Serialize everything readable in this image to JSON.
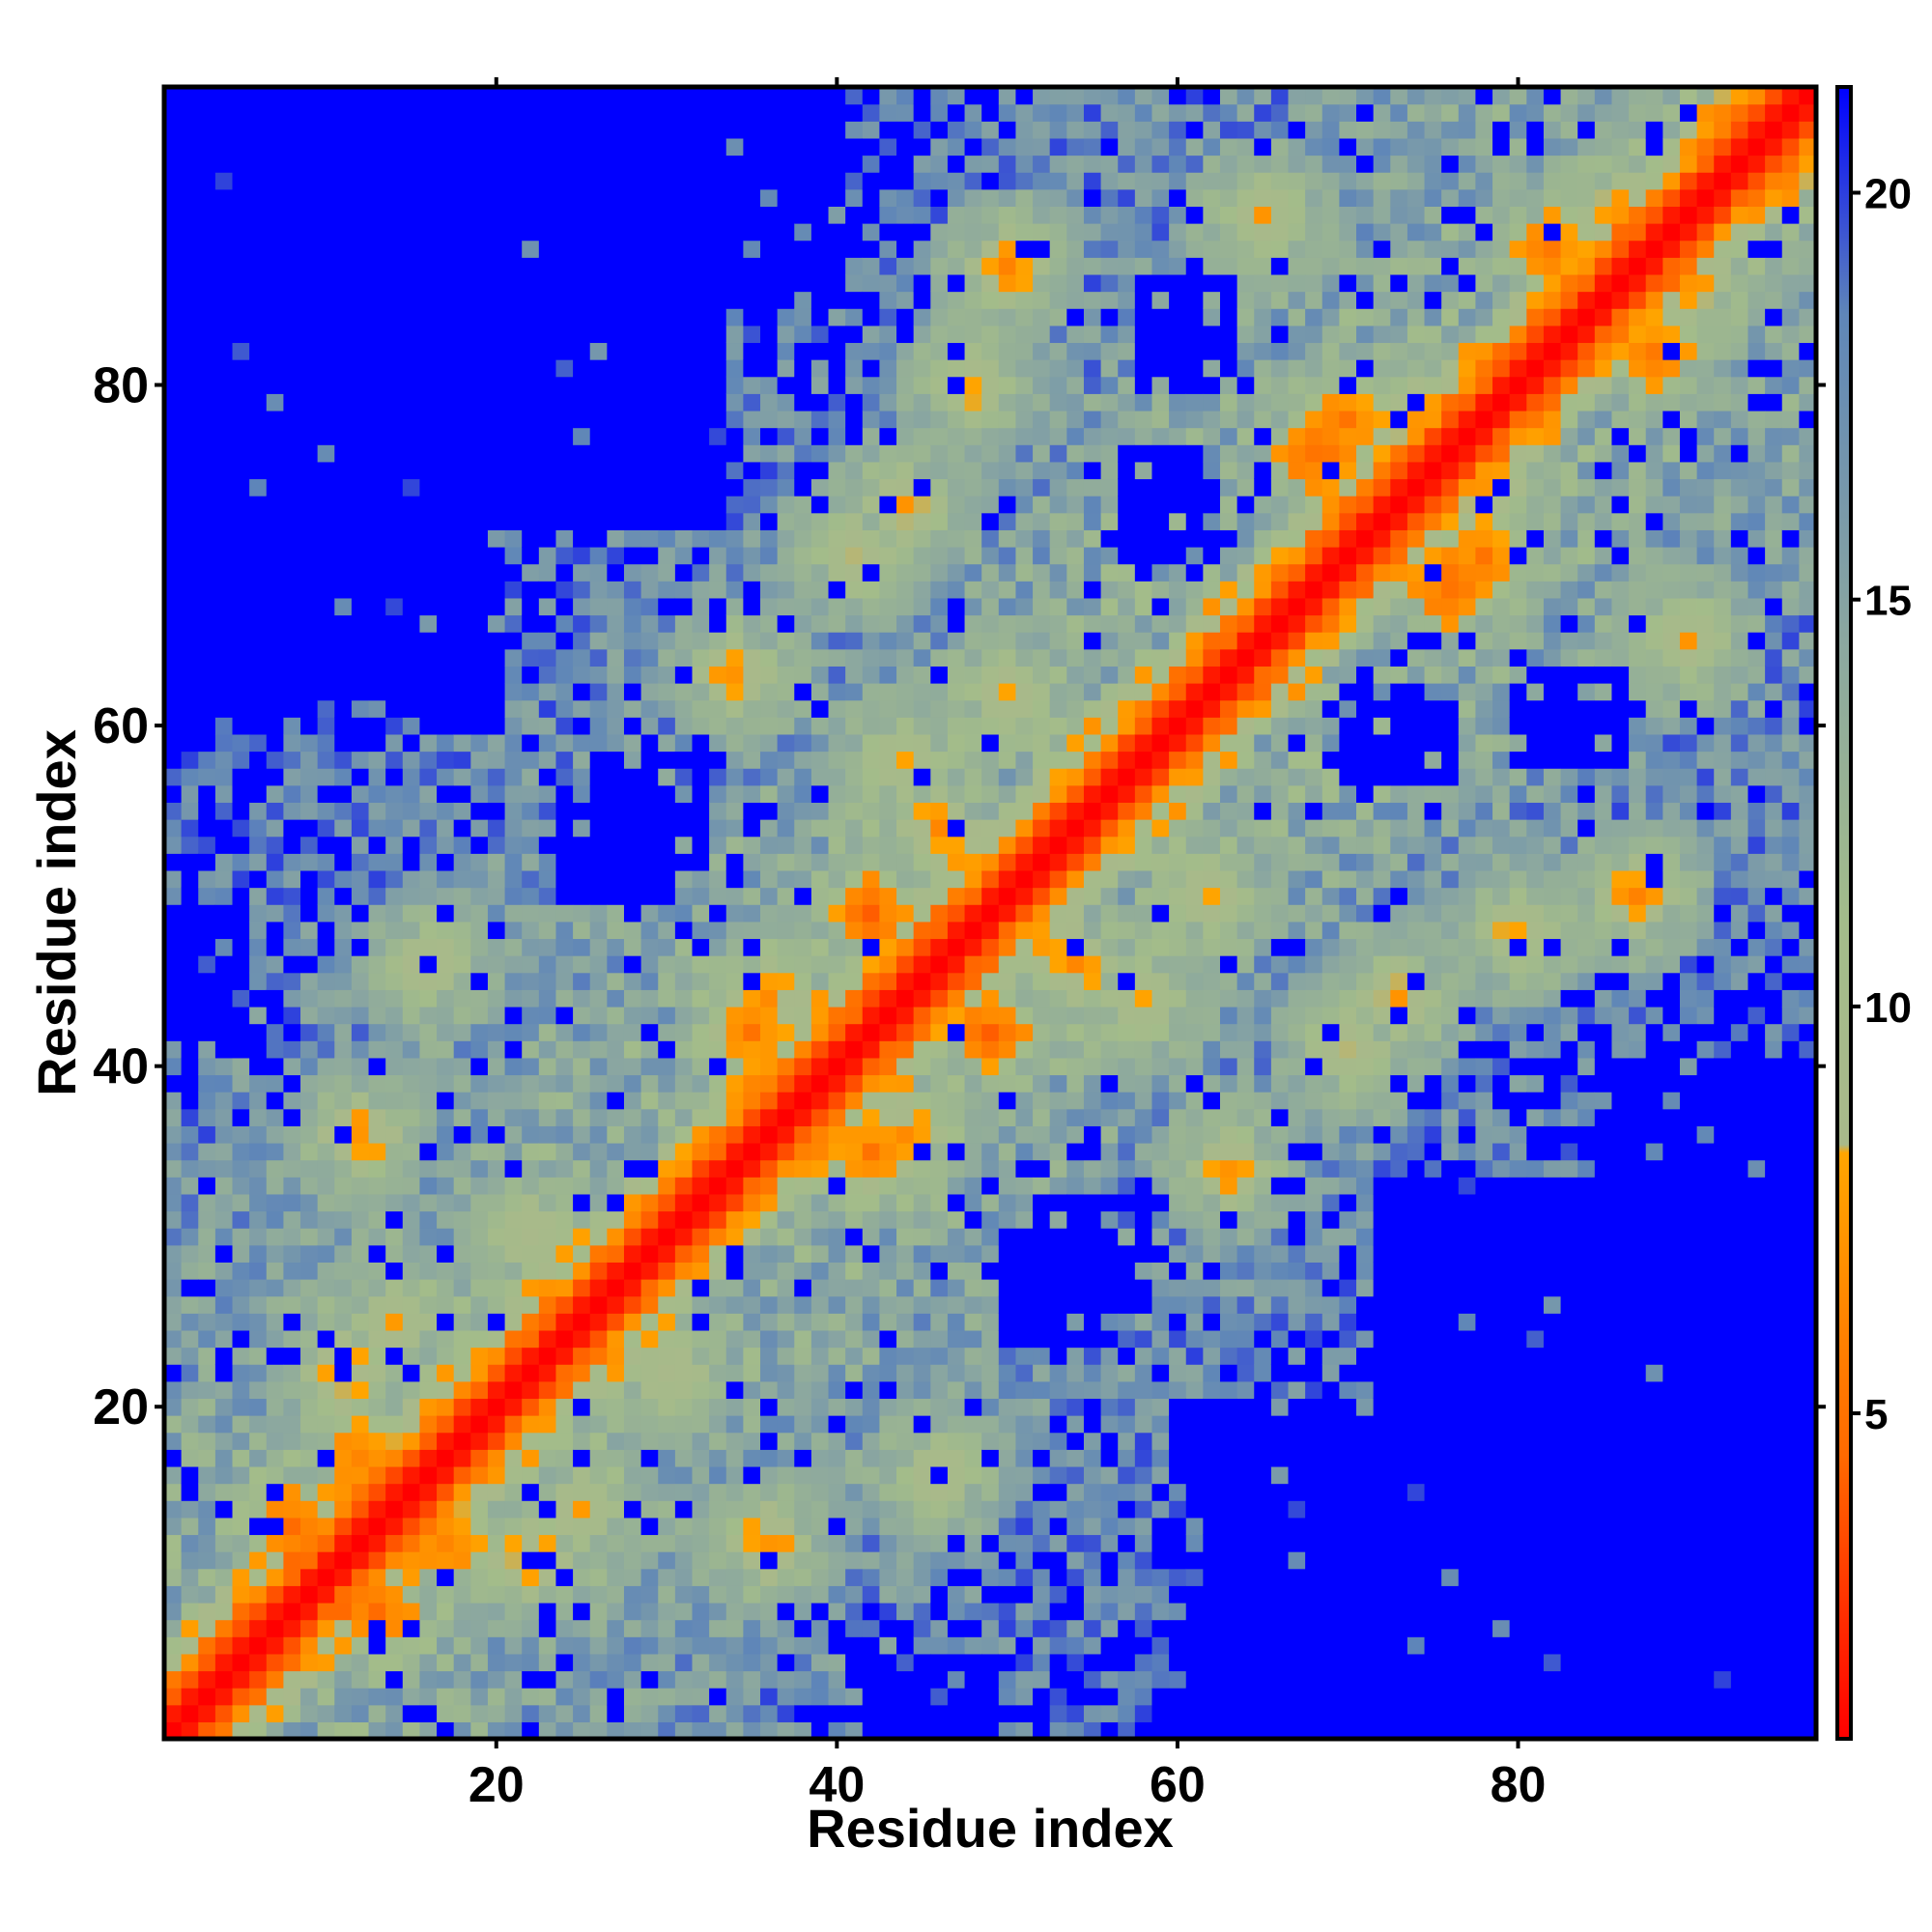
{
  "chart_data": {
    "type": "heatmap",
    "title": "",
    "xlabel": "Residue index",
    "ylabel": "Residue index",
    "n_residues": 97,
    "xlim": [
      1,
      97
    ],
    "ylim": [
      1,
      97
    ],
    "x_ticks": [
      20,
      40,
      60,
      80
    ],
    "y_ticks": [
      20,
      40,
      60,
      80
    ],
    "colorbar": {
      "ticks": [
        5,
        10,
        15,
        20
      ],
      "range": [
        1,
        21.3
      ],
      "stops": [
        {
          "value": 1,
          "color": "#ff0000"
        },
        {
          "value": 4.5,
          "color": "#ff6a00"
        },
        {
          "value": 8.2,
          "color": "#ffa500"
        },
        {
          "value": 8.3,
          "color": "#a9b98a"
        },
        {
          "value": 11,
          "color": "#a3bc8a"
        },
        {
          "value": 14.5,
          "color": "#8ba7a0"
        },
        {
          "value": 18.5,
          "color": "#5f86b8"
        },
        {
          "value": 21.3,
          "color": "#0000ff"
        }
      ]
    },
    "matrix_model": {
      "description_values": "symmetric contact-distance map; diagonal ~1, cutoff blue (>20) beyond local structure",
      "max_value": 21.3,
      "cutoff": 20,
      "seed": 7,
      "contact_patches": [
        {
          "i": 13,
          "j": 8,
          "value": 4
        },
        {
          "i": 17,
          "j": 12,
          "value": 5
        },
        {
          "i": 22,
          "j": 11,
          "value": 6
        },
        {
          "i": 25,
          "j": 14,
          "value": 7
        },
        {
          "i": 38,
          "j": 36,
          "value": 4
        },
        {
          "i": 42,
          "j": 35,
          "value": 5
        },
        {
          "i": 44,
          "j": 36,
          "value": 6
        },
        {
          "i": 49,
          "j": 42,
          "value": 4
        },
        {
          "i": 54,
          "j": 46,
          "value": 6
        },
        {
          "i": 68,
          "j": 76,
          "value": 4
        },
        {
          "i": 70,
          "j": 78,
          "value": 5
        },
        {
          "i": 74,
          "j": 78,
          "value": 6
        },
        {
          "i": 82,
          "j": 88,
          "value": 5
        },
        {
          "i": 86,
          "j": 90,
          "value": 6
        },
        {
          "i": 92,
          "j": 95,
          "value": 5
        },
        {
          "i": 63,
          "j": 34,
          "value": 6
        },
        {
          "i": 70,
          "j": 41,
          "value": 7
        },
        {
          "i": 80,
          "j": 48,
          "value": 7
        },
        {
          "i": 87,
          "j": 50,
          "value": 6
        },
        {
          "i": 30,
          "j": 22,
          "value": 7
        },
        {
          "i": 46,
          "j": 16,
          "value": 7
        },
        {
          "i": 36,
          "j": 12,
          "value": 6
        },
        {
          "i": 90,
          "j": 65,
          "value": 7
        },
        {
          "i": 62,
          "j": 50,
          "value": 7
        },
        {
          "i": 44,
          "j": 58,
          "value": 7
        },
        {
          "i": 73,
          "j": 44,
          "value": 7
        }
      ],
      "blue_regions": [
        {
          "i0": 1,
          "i1": 20,
          "j0": 60,
          "j1": 97
        },
        {
          "i0": 20,
          "i1": 32,
          "j0": 72,
          "j1": 97
        },
        {
          "i0": 62,
          "i1": 97,
          "j0": 1,
          "j1": 10
        },
        {
          "i0": 72,
          "i1": 97,
          "j0": 10,
          "j1": 33
        },
        {
          "i0": 85,
          "i1": 97,
          "j0": 33,
          "j1": 40
        },
        {
          "i0": 57,
          "i1": 62,
          "j0": 70,
          "j1": 76
        },
        {
          "i0": 42,
          "i1": 49,
          "j0": 1,
          "j1": 5
        },
        {
          "i0": 26,
          "i1": 32,
          "j0": 52,
          "j1": 58
        },
        {
          "i0": 80,
          "i1": 86,
          "j0": 58,
          "j1": 63
        },
        {
          "i0": 50,
          "i1": 55,
          "j0": 24,
          "j1": 30
        }
      ]
    }
  }
}
